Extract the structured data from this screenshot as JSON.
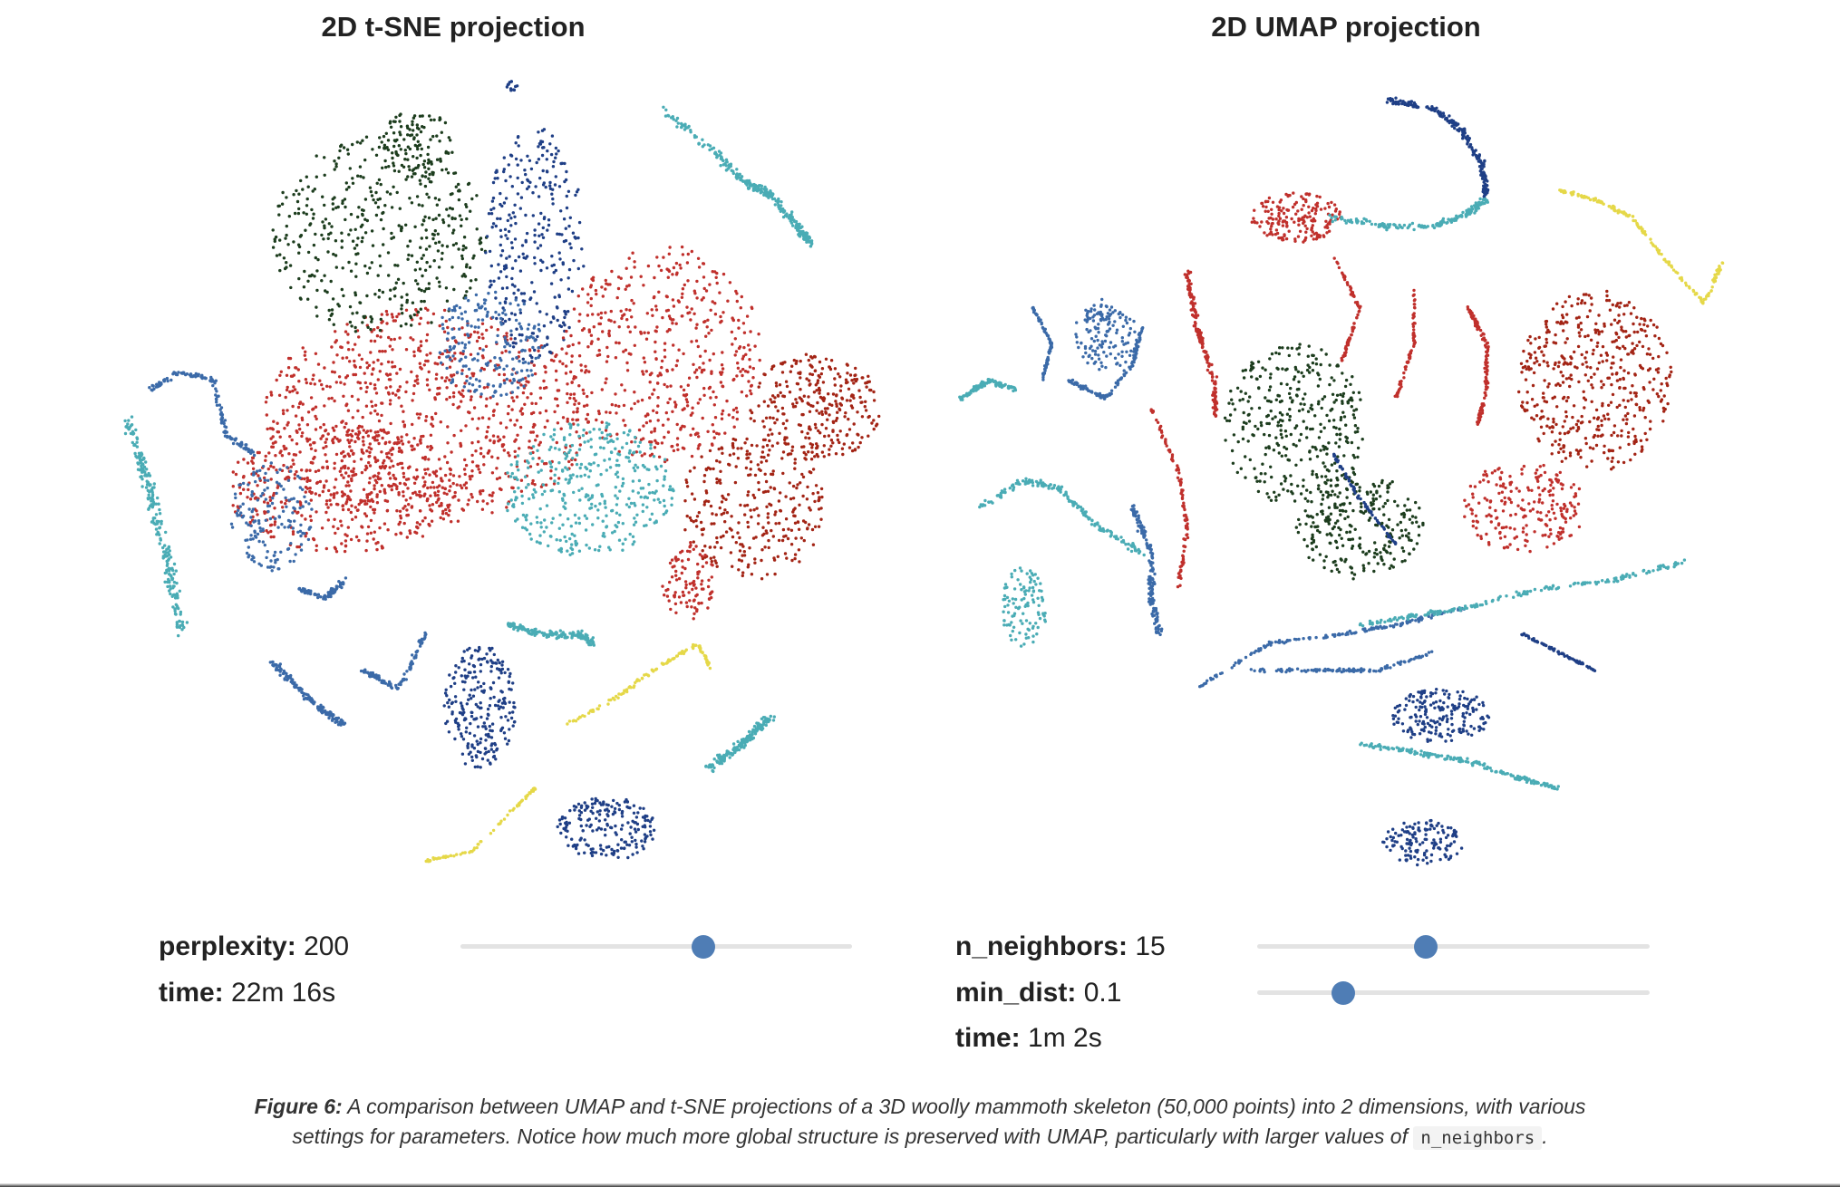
{
  "chart_data": [
    {
      "type": "scatter",
      "title": "2D t-SNE projection",
      "xlabel": "",
      "ylabel": "",
      "grid": false,
      "legend": "none",
      "colors": [
        "#c0302c",
        "#1f3f86",
        "#4aacb5",
        "#1d3d1e",
        "#e5d848",
        "#a32415",
        "#3b6aa8"
      ],
      "controls": [
        {
          "label": "perplexity:",
          "value": "200",
          "slider_fraction": 0.62
        },
        {
          "label": "time:",
          "value": "22m 16s"
        }
      ]
    },
    {
      "type": "scatter",
      "title": "2D UMAP projection",
      "xlabel": "",
      "ylabel": "",
      "grid": false,
      "legend": "none",
      "colors": [
        "#c0302c",
        "#1f3f86",
        "#4aacb5",
        "#1d3d1e",
        "#e5d848",
        "#a32415",
        "#3b6aa8"
      ],
      "controls": [
        {
          "label": "n_neighbors:",
          "value": "15",
          "slider_fraction": 0.43
        },
        {
          "label": "min_dist:",
          "value": "0.1",
          "slider_fraction": 0.22
        },
        {
          "label": "time:",
          "value": "1m 2s"
        }
      ]
    }
  ],
  "caption": {
    "lead": "Figure 6:",
    "text": "A comparison between UMAP and t-SNE projections of a 3D woolly mammoth skeleton (50,000 points) into 2 dimensions, with various settings for parameters. Notice how much more global structure is preserved with UMAP, particularly with larger values of",
    "code": "n_neighbors",
    "end": "."
  }
}
